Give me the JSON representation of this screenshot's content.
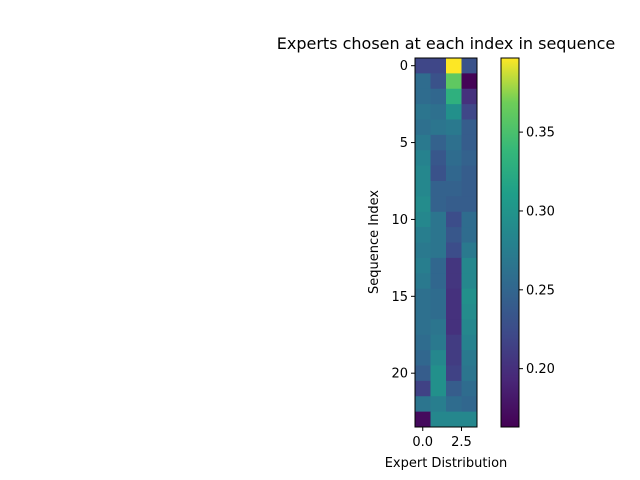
{
  "chart_data": {
    "type": "heatmap",
    "title": "Experts chosen at each index in sequence",
    "xlabel": "Expert Distribution",
    "ylabel": "Sequence Index",
    "x_ticks": [
      0.0,
      2.5
    ],
    "x_tick_labels": [
      "0.0",
      "2.5"
    ],
    "y_ticks": [
      0,
      5,
      10,
      15,
      20
    ],
    "y_tick_labels": [
      "0",
      "5",
      "10",
      "15",
      "20"
    ],
    "colormap": "viridis",
    "vmin": 0.163,
    "vmax": 0.397,
    "colorbar_ticks": [
      0.2,
      0.25,
      0.3,
      0.35
    ],
    "colorbar_tick_labels": [
      "0.20",
      "0.25",
      "0.30",
      "0.35"
    ],
    "n_experts": 4,
    "values": [
      [
        0.22,
        0.22,
        0.397,
        0.23
      ],
      [
        0.255,
        0.23,
        0.36,
        0.165
      ],
      [
        0.255,
        0.25,
        0.33,
        0.2
      ],
      [
        0.265,
        0.26,
        0.295,
        0.22
      ],
      [
        0.26,
        0.265,
        0.27,
        0.24
      ],
      [
        0.27,
        0.245,
        0.26,
        0.24
      ],
      [
        0.28,
        0.235,
        0.255,
        0.245
      ],
      [
        0.285,
        0.23,
        0.25,
        0.24
      ],
      [
        0.285,
        0.245,
        0.245,
        0.24
      ],
      [
        0.29,
        0.245,
        0.24,
        0.24
      ],
      [
        0.285,
        0.265,
        0.225,
        0.255
      ],
      [
        0.275,
        0.265,
        0.235,
        0.255
      ],
      [
        0.27,
        0.265,
        0.225,
        0.27
      ],
      [
        0.275,
        0.25,
        0.205,
        0.285
      ],
      [
        0.27,
        0.25,
        0.205,
        0.285
      ],
      [
        0.26,
        0.255,
        0.2,
        0.295
      ],
      [
        0.26,
        0.255,
        0.2,
        0.29
      ],
      [
        0.26,
        0.265,
        0.2,
        0.285
      ],
      [
        0.255,
        0.27,
        0.21,
        0.28
      ],
      [
        0.25,
        0.285,
        0.21,
        0.27
      ],
      [
        0.24,
        0.295,
        0.215,
        0.265
      ],
      [
        0.215,
        0.295,
        0.24,
        0.255
      ],
      [
        0.265,
        0.275,
        0.255,
        0.25
      ],
      [
        0.17,
        0.285,
        0.285,
        0.285
      ]
    ]
  }
}
